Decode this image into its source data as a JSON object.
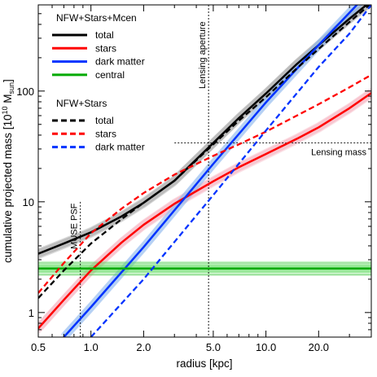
{
  "chart_data": {
    "type": "line",
    "xlabel": "radius [kpc]",
    "ylabel_main": "cumulative projected mass [10",
    "ylabel_sup": "10",
    "ylabel_unit": " M",
    "ylabel_sub": "sun",
    "ylabel_end": "]",
    "xscale": "log",
    "yscale": "log",
    "xlim": [
      0.5,
      40
    ],
    "ylim": [
      0.6,
      600
    ],
    "xticks": [
      {
        "value": 0.5,
        "label": "0.5"
      },
      {
        "value": 1.0,
        "label": "1.0"
      },
      {
        "value": 2.0,
        "label": "2.0"
      },
      {
        "value": 5.0,
        "label": "5.0"
      },
      {
        "value": 10.0,
        "label": "10.0"
      },
      {
        "value": 20.0,
        "label": "20.0"
      }
    ],
    "yticks": [
      {
        "value": 1,
        "label": "1"
      },
      {
        "value": 10,
        "label": "10"
      },
      {
        "value": 100,
        "label": "100"
      }
    ],
    "legend_groups": [
      {
        "title": "NFW+Stars+Mcen",
        "entries": [
          {
            "label": "total",
            "color": "#000000",
            "style": "solid"
          },
          {
            "label": "stars",
            "color": "#ff0000",
            "style": "solid"
          },
          {
            "label": "dark matter",
            "color": "#0033ff",
            "style": "solid"
          },
          {
            "label": "central",
            "color": "#00aa00",
            "style": "solid"
          }
        ]
      },
      {
        "title": "NFW+Stars",
        "entries": [
          {
            "label": "total",
            "color": "#000000",
            "style": "dashed"
          },
          {
            "label": "stars",
            "color": "#ff0000",
            "style": "dashed"
          },
          {
            "label": "dark matter",
            "color": "#0033ff",
            "style": "dashed"
          }
        ]
      }
    ],
    "series": [
      {
        "group": "NFW+Stars+Mcen",
        "label": "total",
        "color": "#000000",
        "style": "solid",
        "band_color": "#999999",
        "x": [
          0.5,
          0.7,
          1.0,
          1.5,
          2.0,
          3.0,
          5.0,
          7.0,
          10.0,
          15.0,
          20.0,
          30.0,
          40.0
        ],
        "y": [
          3.4,
          4.2,
          5.3,
          7.4,
          9.8,
          15.5,
          34,
          57,
          95,
          175,
          260,
          450,
          650
        ]
      },
      {
        "group": "NFW+Stars+Mcen",
        "label": "stars",
        "color": "#ff0000",
        "style": "solid",
        "band_color": "#f4a8b8",
        "x": [
          0.5,
          0.7,
          1.0,
          1.5,
          2.0,
          3.0,
          5.0,
          7.0,
          10.0,
          15.0,
          20.0,
          30.0,
          40.0
        ],
        "y": [
          0.72,
          1.3,
          2.4,
          4.3,
          6.2,
          9.6,
          15.3,
          20.5,
          27,
          37,
          47,
          70,
          96
        ]
      },
      {
        "group": "NFW+Stars+Mcen",
        "label": "dark matter",
        "color": "#0033ff",
        "style": "solid",
        "band_color": "#8fb8ee",
        "x": [
          0.7,
          1.0,
          2.0,
          5.0,
          10.0,
          20.0,
          30.0,
          40.0
        ],
        "y": [
          0.6,
          1.12,
          3.9,
          22,
          79,
          260,
          510,
          820
        ]
      },
      {
        "group": "NFW+Stars+Mcen",
        "label": "central",
        "color": "#00aa00",
        "style": "solid",
        "band_color": "#66dd66",
        "x": [
          0.5,
          40.0
        ],
        "y": [
          2.5,
          2.5
        ]
      },
      {
        "group": "NFW+Stars",
        "label": "total",
        "color": "#000000",
        "style": "dashed",
        "x": [
          0.5,
          0.7,
          1.0,
          1.5,
          2.0,
          3.0,
          5.0,
          7.0,
          10.0,
          15.0,
          20.0,
          30.0,
          40.0
        ],
        "y": [
          1.35,
          2.4,
          4.2,
          7.0,
          9.8,
          15.5,
          33,
          54,
          88,
          160,
          240,
          420,
          620
        ]
      },
      {
        "group": "NFW+Stars",
        "label": "stars",
        "color": "#ff0000",
        "style": "dashed",
        "x": [
          0.5,
          0.7,
          1.0,
          1.5,
          2.0,
          3.0,
          5.0,
          7.0,
          10.0,
          15.0,
          20.0,
          30.0,
          40.0
        ],
        "y": [
          1.5,
          2.8,
          5.2,
          8.7,
          12.0,
          17.6,
          26,
          33,
          43,
          60,
          76,
          108,
          140
        ]
      },
      {
        "group": "NFW+Stars",
        "label": "dark matter",
        "color": "#0033ff",
        "style": "dashed",
        "x": [
          1.0,
          2.0,
          5.0,
          10.0,
          20.0,
          30.0,
          40.0
        ],
        "y": [
          0.6,
          2.0,
          11.5,
          44,
          165,
          330,
          600
        ]
      }
    ],
    "reference_lines": [
      {
        "name": "lensing-aperture",
        "orientation": "vertical",
        "x": 4.7,
        "label": "Lensing aperture",
        "style": "dotted"
      },
      {
        "name": "lensing-mass",
        "orientation": "horizontal",
        "y": 34,
        "x_from": 3.0,
        "label": "Lensing mass",
        "style": "dotted"
      },
      {
        "name": "muse-psf",
        "orientation": "vertical",
        "x": 0.87,
        "y_to": 10,
        "label": "MUSE PSF",
        "style": "dotted"
      }
    ],
    "legend_position": "top-left",
    "grid": false
  }
}
